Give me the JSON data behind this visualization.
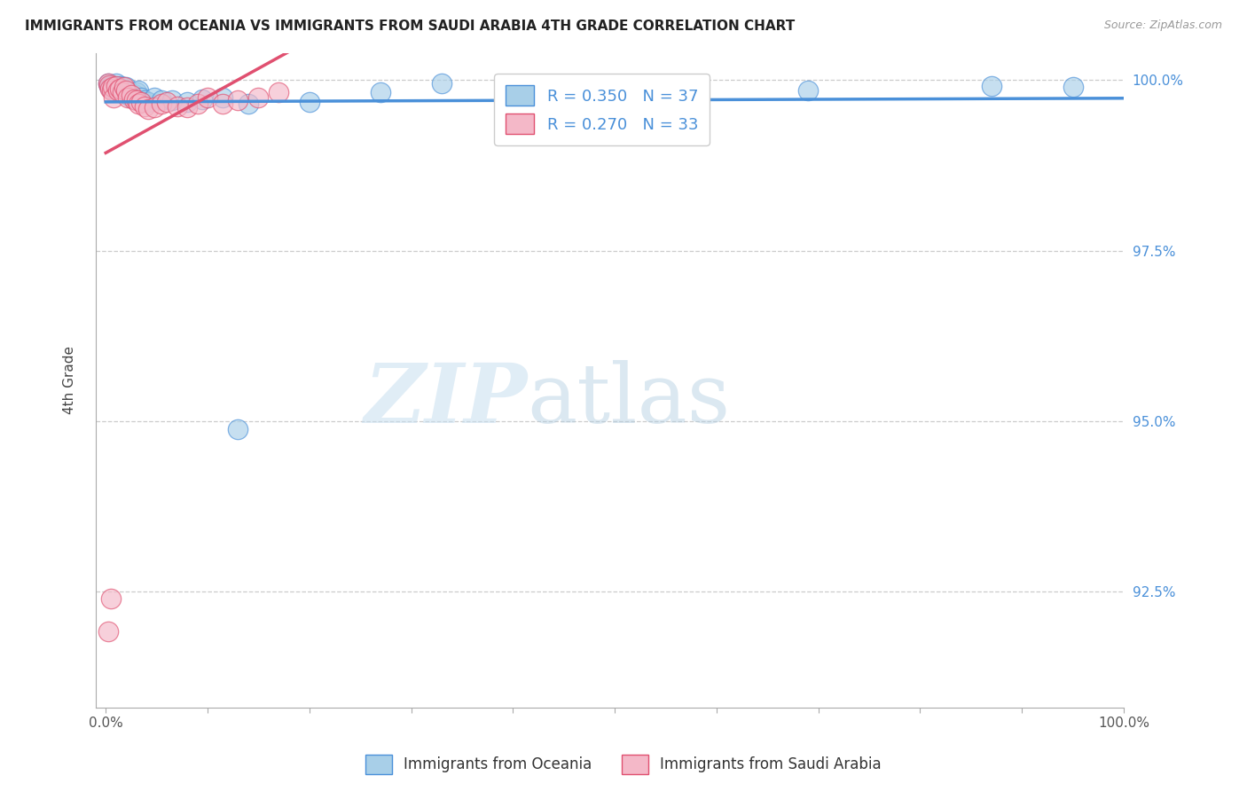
{
  "title": "IMMIGRANTS FROM OCEANIA VS IMMIGRANTS FROM SAUDI ARABIA 4TH GRADE CORRELATION CHART",
  "source": "Source: ZipAtlas.com",
  "ylabel": "4th Grade",
  "xaxis_ticks": [
    0.0,
    0.1,
    0.2,
    0.3,
    0.4,
    0.5,
    0.6,
    0.7,
    0.8,
    0.9,
    1.0
  ],
  "yaxis_ticks": [
    0.925,
    0.95,
    0.975,
    1.0
  ],
  "yaxis_labels": [
    "92.5%",
    "95.0%",
    "97.5%",
    "100.0%"
  ],
  "xlim": [
    -0.01,
    1.0
  ],
  "ylim": [
    0.908,
    1.004
  ],
  "legend_R_blue": "R = 0.350",
  "legend_N_blue": "N = 37",
  "legend_R_pink": "R = 0.270",
  "legend_N_pink": "N = 33",
  "blue_color": "#a8cfe8",
  "pink_color": "#f4b8c8",
  "trend_blue": "#4a90d9",
  "trend_pink": "#e05070",
  "watermark_zip": "ZIP",
  "watermark_atlas": "atlas",
  "blue_scatter_x": [
    0.002,
    0.003,
    0.004,
    0.005,
    0.006,
    0.007,
    0.008,
    0.009,
    0.01,
    0.011,
    0.012,
    0.015,
    0.018,
    0.02,
    0.022,
    0.025,
    0.028,
    0.03,
    0.032,
    0.035,
    0.038,
    0.042,
    0.048,
    0.055,
    0.065,
    0.08,
    0.095,
    0.115,
    0.14,
    0.2,
    0.27,
    0.33,
    0.52,
    0.69,
    0.87,
    0.95,
    0.13
  ],
  "blue_scatter_y": [
    0.9995,
    0.9992,
    0.999,
    0.9988,
    0.9993,
    0.9991,
    0.9985,
    0.9987,
    0.9995,
    0.999,
    0.9988,
    0.9992,
    0.9985,
    0.999,
    0.9978,
    0.9975,
    0.998,
    0.9982,
    0.9985,
    0.9975,
    0.997,
    0.9968,
    0.9975,
    0.997,
    0.997,
    0.9968,
    0.9972,
    0.9975,
    0.9965,
    0.9968,
    0.9982,
    0.9995,
    0.9978,
    0.9985,
    0.9992,
    0.999,
    0.9488
  ],
  "pink_scatter_x": [
    0.002,
    0.003,
    0.004,
    0.005,
    0.006,
    0.007,
    0.008,
    0.01,
    0.012,
    0.014,
    0.016,
    0.018,
    0.02,
    0.022,
    0.025,
    0.028,
    0.03,
    0.032,
    0.035,
    0.038,
    0.042,
    0.048,
    0.055,
    0.06,
    0.07,
    0.08,
    0.09,
    0.1,
    0.115,
    0.13,
    0.15,
    0.17,
    0.002
  ],
  "pink_scatter_y": [
    0.9995,
    0.9993,
    0.9988,
    0.924,
    0.9985,
    0.999,
    0.9975,
    0.9992,
    0.9985,
    0.9988,
    0.9982,
    0.999,
    0.9985,
    0.9975,
    0.9978,
    0.9972,
    0.997,
    0.9965,
    0.9968,
    0.9962,
    0.9958,
    0.996,
    0.9965,
    0.9968,
    0.9962,
    0.996,
    0.9965,
    0.9975,
    0.9965,
    0.997,
    0.9975,
    0.9982,
    0.9192
  ]
}
